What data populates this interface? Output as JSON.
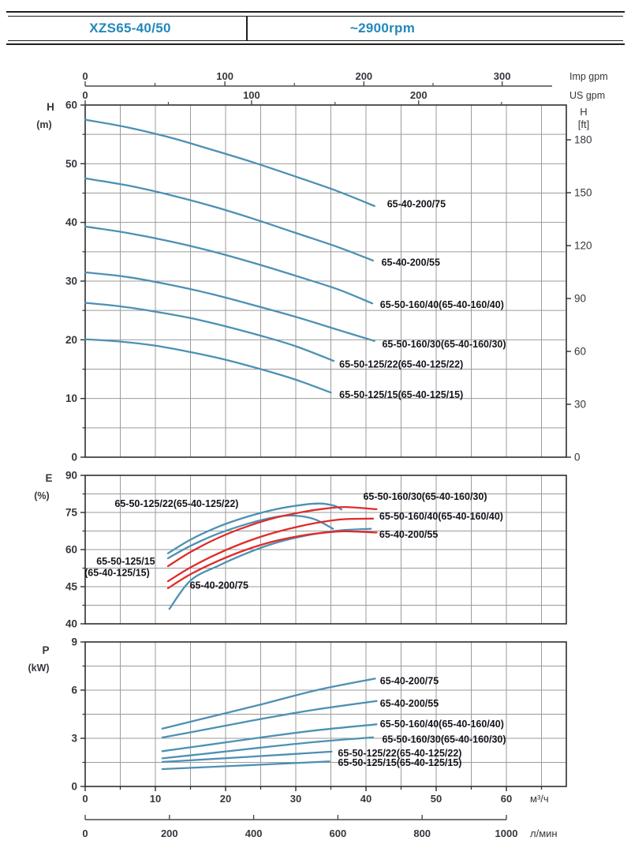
{
  "header": {
    "model": "XZS65-40/50",
    "speed": "~2900rpm"
  },
  "colors": {
    "accent": "#2288ba",
    "curve_blue": "#4d90b4",
    "curve_red": "#e02b28",
    "grid": "#9b9b9b",
    "border": "#2e2e2e",
    "axis_line": "#4a4a4a",
    "tick_text": "#36363e",
    "curve_label": "#14141c"
  },
  "flow_axes": {
    "imp": {
      "label": "Imp gpm",
      "ticks": [
        0,
        100,
        200,
        300
      ],
      "tick_q": [
        0,
        19.9,
        39.7,
        59.4
      ],
      "minor_q": [
        9.95,
        29.8,
        49.55
      ]
    },
    "us": {
      "label": "US gpm",
      "ticks": [
        0,
        100,
        200
      ],
      "tick_q": [
        0,
        23.7,
        47.5
      ],
      "minor_q": [
        11.85,
        35.6,
        59.3
      ]
    },
    "m3h": {
      "label": "м³/ч",
      "ticks": [
        0,
        10,
        20,
        30,
        40,
        50,
        60
      ]
    },
    "lmin": {
      "label": "л/мин",
      "ticks": [
        0,
        200,
        400,
        600,
        800,
        1000
      ],
      "q_per_unit": 0.06
    }
  },
  "chart_data": [
    {
      "id": "head",
      "type": "line",
      "axis_letter": "H",
      "axis_unit": "(m)",
      "xlabel": "м³/ч",
      "ylim": [
        0,
        60
      ],
      "y_ticks": [
        60,
        50,
        40,
        30,
        20,
        10,
        0
      ],
      "right_axis": {
        "letter": "H",
        "unit": "[ft]",
        "ticks": [
          180,
          150,
          120,
          90,
          60,
          30,
          0
        ]
      },
      "series": [
        {
          "name": "65-40-200/75",
          "color": "blue",
          "label_at": [
            43,
            43.2
          ],
          "points": [
            [
              0,
              57.5
            ],
            [
              6,
              56.2
            ],
            [
              12,
              54.5
            ],
            [
              18,
              52.4
            ],
            [
              24,
              50.2
            ],
            [
              30,
              47.8
            ],
            [
              36,
              45.3
            ],
            [
              41.2,
              42.8
            ]
          ]
        },
        {
          "name": "65-40-200/55",
          "color": "blue",
          "label_at": [
            42.2,
            33.2
          ],
          "points": [
            [
              0,
              47.5
            ],
            [
              6,
              46.3
            ],
            [
              12,
              44.7
            ],
            [
              18,
              42.8
            ],
            [
              24,
              40.6
            ],
            [
              30,
              38.2
            ],
            [
              36,
              35.8
            ],
            [
              41,
              33.5
            ]
          ]
        },
        {
          "name": "65-50-160/40(65-40-160/40)",
          "color": "blue",
          "label_at": [
            42,
            26
          ],
          "points": [
            [
              0,
              39.3
            ],
            [
              6,
              38.2
            ],
            [
              12,
              36.8
            ],
            [
              18,
              35.1
            ],
            [
              24,
              33.1
            ],
            [
              30,
              30.9
            ],
            [
              36,
              28.6
            ],
            [
              40.9,
              26.2
            ]
          ]
        },
        {
          "name": "65-50-160/30(65-40-160/30)",
          "color": "blue",
          "label_at": [
            42.3,
            19.3
          ],
          "points": [
            [
              0,
              31.5
            ],
            [
              6,
              30.7
            ],
            [
              12,
              29.4
            ],
            [
              18,
              27.8
            ],
            [
              24,
              25.9
            ],
            [
              30,
              23.9
            ],
            [
              36,
              21.7
            ],
            [
              41.2,
              19.8
            ]
          ]
        },
        {
          "name": "65-50-125/22(65-40-125/22)",
          "color": "blue",
          "label_at": [
            36.2,
            15.9
          ],
          "points": [
            [
              0,
              26.3
            ],
            [
              5,
              25.7
            ],
            [
              10,
              24.8
            ],
            [
              15,
              23.7
            ],
            [
              20,
              22.3
            ],
            [
              25,
              20.7
            ],
            [
              30,
              18.9
            ],
            [
              35.4,
              16.4
            ]
          ]
        },
        {
          "name": "65-50-125/15(65-40-125/15)",
          "color": "blue",
          "label_at": [
            36.2,
            10.7
          ],
          "points": [
            [
              0,
              20.1
            ],
            [
              5,
              19.7
            ],
            [
              10,
              19.0
            ],
            [
              15,
              17.9
            ],
            [
              20,
              16.6
            ],
            [
              25,
              15.0
            ],
            [
              30,
              13.2
            ],
            [
              35,
              11.0
            ]
          ]
        }
      ]
    },
    {
      "id": "efficiency",
      "type": "line",
      "axis_letter": "E",
      "axis_unit": "(%)",
      "xlabel": "м³/ч",
      "ylim": [
        40,
        90
      ],
      "y_scale": "nonuniform",
      "y_ticks": [
        90,
        75,
        60,
        45,
        40
      ],
      "series": [
        {
          "name": "65-50-125/22(65-40-125/22)",
          "color": "blue",
          "label_at": [
            4.2,
            78.6
          ],
          "points": [
            [
              11.8,
              58.5
            ],
            [
              15,
              64
            ],
            [
              19,
              69.3
            ],
            [
              23,
              73.2
            ],
            [
              27,
              76.2
            ],
            [
              31,
              78.1
            ],
            [
              33.5,
              78.6
            ],
            [
              35.5,
              77.7
            ],
            [
              36.5,
              76.2
            ]
          ]
        },
        {
          "name": "65-50-125/15(65-40-125/15)",
          "color": "blue",
          "label_lines": [
            {
              "text": "65-50-125/15",
              "at": [
                1.6,
                55.3
              ]
            },
            {
              "text": "(65-40-125/15)",
              "at": [
                -0.1,
                50.7
              ]
            }
          ],
          "points": [
            [
              11.8,
              56.5
            ],
            [
              15,
              61.5
            ],
            [
              19,
              66.5
            ],
            [
              23,
              70.3
            ],
            [
              26,
              72.5
            ],
            [
              28.5,
              73.7
            ],
            [
              31,
              73.4
            ],
            [
              33,
              71.9
            ],
            [
              35.3,
              68.4
            ]
          ]
        },
        {
          "name": "65-40-200/75",
          "color": "blue",
          "label_at": [
            14.9,
            45.6
          ],
          "points": [
            [
              12,
              42
            ],
            [
              15,
              47.5
            ],
            [
              19,
              53.5
            ],
            [
              23,
              58.5
            ],
            [
              27,
              62.6
            ],
            [
              31,
              65.4
            ],
            [
              34,
              66.9
            ],
            [
              37,
              67.9
            ],
            [
              40.7,
              68.4
            ]
          ]
        },
        {
          "name": "65-50-160/30(65-40-160/30)",
          "color": "red",
          "label_at": [
            39.6,
            81.5
          ],
          "points": [
            [
              11.8,
              53.3
            ],
            [
              15,
              59
            ],
            [
              19,
              64.8
            ],
            [
              23,
              69.3
            ],
            [
              27,
              72.8
            ],
            [
              31,
              75.2
            ],
            [
              34,
              76.5
            ],
            [
              37,
              77.2
            ],
            [
              41.5,
              76.3
            ]
          ]
        },
        {
          "name": "65-50-160/40(65-40-160/40)",
          "color": "red",
          "label_at": [
            41.9,
            73.6
          ],
          "points": [
            [
              11.8,
              47.2
            ],
            [
              15,
              52.8
            ],
            [
              19,
              58.5
            ],
            [
              23,
              63.2
            ],
            [
              27,
              66.9
            ],
            [
              31,
              69.7
            ],
            [
              34,
              71.3
            ],
            [
              37,
              72.3
            ],
            [
              41,
              72.5
            ]
          ]
        },
        {
          "name": "65-40-200/55",
          "color": "red",
          "label_at": [
            41.9,
            66.3
          ],
          "points": [
            [
              11.8,
              44.8
            ],
            [
              15,
              50
            ],
            [
              19,
              55.5
            ],
            [
              23,
              60
            ],
            [
              27,
              63.4
            ],
            [
              31,
              65.7
            ],
            [
              34,
              66.8
            ],
            [
              37,
              67.4
            ],
            [
              41.5,
              66.9
            ]
          ]
        }
      ]
    },
    {
      "id": "power",
      "type": "line",
      "axis_letter": "P",
      "axis_unit": "(kW)",
      "xlabel": "м³/ч",
      "ylim": [
        0,
        9
      ],
      "y_ticks": [
        9,
        6,
        3,
        0
      ],
      "series": [
        {
          "name": "65-40-200/75",
          "color": "blue",
          "label_at": [
            42,
            6.6
          ],
          "points": [
            [
              11,
              3.6
            ],
            [
              18,
              4.35
            ],
            [
              25,
              5.1
            ],
            [
              33,
              6.0
            ],
            [
              41.3,
              6.72
            ]
          ]
        },
        {
          "name": "65-40-200/55",
          "color": "blue",
          "label_at": [
            42,
            5.2
          ],
          "points": [
            [
              11,
              3.05
            ],
            [
              18,
              3.62
            ],
            [
              25,
              4.2
            ],
            [
              33,
              4.8
            ],
            [
              41.5,
              5.32
            ]
          ]
        },
        {
          "name": "65-50-160/40(65-40-160/40)",
          "color": "blue",
          "label_at": [
            42,
            3.9
          ],
          "points": [
            [
              11,
              2.2
            ],
            [
              18,
              2.62
            ],
            [
              25,
              3.05
            ],
            [
              33,
              3.5
            ],
            [
              41.5,
              3.87
            ]
          ]
        },
        {
          "name": "65-50-160/30(65-40-160/30)",
          "color": "blue",
          "label_at": [
            42.3,
            2.95
          ],
          "points": [
            [
              11,
              1.75
            ],
            [
              18,
              2.08
            ],
            [
              25,
              2.42
            ],
            [
              33,
              2.78
            ],
            [
              41,
              3.06
            ]
          ]
        },
        {
          "name": "65-50-125/22(65-40-125/22)",
          "color": "blue",
          "label_at": [
            36,
            2.1
          ],
          "points": [
            [
              11,
              1.53
            ],
            [
              17,
              1.68
            ],
            [
              23,
              1.84
            ],
            [
              29,
              2.0
            ],
            [
              35.1,
              2.17
            ]
          ]
        },
        {
          "name": "65-50-125/15(65-40-125/15)",
          "color": "blue",
          "label_at": [
            36,
            1.5
          ],
          "points": [
            [
              11,
              1.08
            ],
            [
              17,
              1.2
            ],
            [
              23,
              1.32
            ],
            [
              29,
              1.44
            ],
            [
              34.8,
              1.56
            ]
          ]
        }
      ]
    }
  ]
}
